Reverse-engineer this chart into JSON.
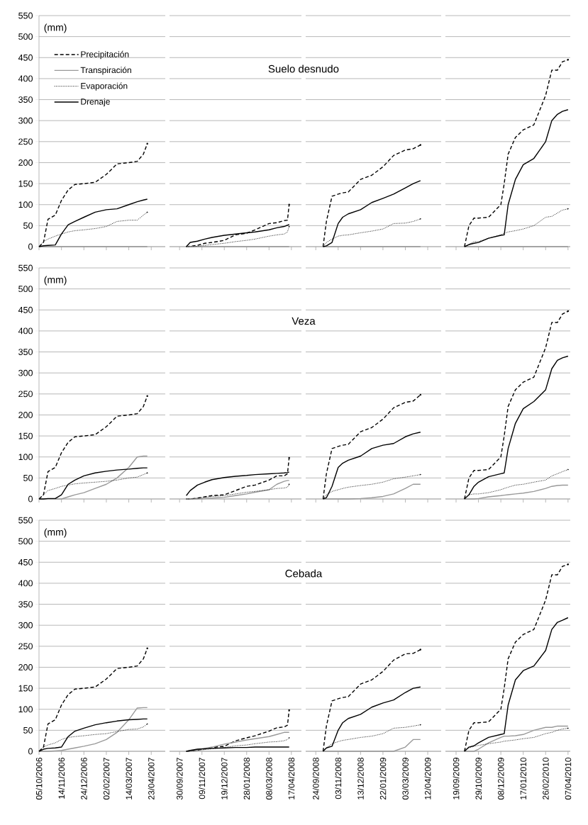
{
  "chart_data": [
    {
      "type": "line",
      "ylabel": "(mm)",
      "legend": "top left",
      "grid": "y",
      "tick_labels": "y",
      "xlim": [
        "2006-10-05",
        "2007-05-18"
      ],
      "ylim": [
        0,
        550
      ],
      "yticks": [
        0,
        50,
        100,
        150,
        200,
        250,
        300,
        350,
        400,
        450,
        500,
        550
      ],
      "xticks": [
        {
          "value": "2006-10-05",
          "label": null
        },
        {
          "value": "2006-11-14",
          "label": null
        },
        {
          "value": "2006-12-24",
          "label": null
        },
        {
          "value": "2007-02-02",
          "label": null
        },
        {
          "value": "2007-03-14",
          "label": null
        },
        {
          "value": "2007-04-23",
          "label": null
        }
      ],
      "x": [
        "2006-10-05",
        "2006-10-13",
        "2006-10-21",
        "2006-11-03",
        "2006-11-14",
        "2006-11-26",
        "2006-12-08",
        "2006-12-24",
        "2007-01-13",
        "2007-02-02",
        "2007-02-21",
        "2007-03-14",
        "2007-03-29",
        "2007-04-09",
        "2007-04-16"
      ],
      "series": [
        {
          "name": "Precipitación",
          "color": "#000000",
          "line_style": "dashed",
          "values": [
            0,
            10,
            65,
            75,
            110,
            135,
            148,
            150,
            153,
            172,
            197,
            200,
            203,
            220,
            245
          ]
        },
        {
          "name": "Transpiración",
          "color": "#999999",
          "line_style": "solid",
          "values": [
            0,
            0,
            0,
            0,
            0,
            0,
            0,
            0,
            0,
            0,
            0,
            0,
            0,
            0,
            0
          ]
        },
        {
          "name": "Evaporación",
          "color": "#000000",
          "line_style": "dotted",
          "values": [
            0,
            12,
            18,
            25,
            30,
            35,
            38,
            40,
            43,
            48,
            60,
            63,
            63,
            75,
            82
          ]
        },
        {
          "name": "Drenaje",
          "color": "#000000",
          "line_style": "solid",
          "values": [
            0,
            2,
            3,
            4,
            30,
            52,
            60,
            70,
            82,
            88,
            90,
            100,
            107,
            111,
            113
          ]
        }
      ]
    },
    {
      "type": "line",
      "title": "Suelo desnudo",
      "grid": "y",
      "tick_labels": false,
      "xlim": [
        "2007-09-12",
        "2008-05-05"
      ],
      "ylim": [
        0,
        550
      ],
      "yticks": [
        0,
        50,
        100,
        150,
        200,
        250,
        300,
        350,
        400,
        450,
        500,
        550
      ],
      "xticks": [
        {
          "value": "2007-09-30",
          "label": null
        },
        {
          "value": "2007-11-09",
          "label": null
        },
        {
          "value": "2007-12-19",
          "label": null
        },
        {
          "value": "2008-01-28",
          "label": null
        },
        {
          "value": "2008-03-08",
          "label": null
        },
        {
          "value": "2008-04-17",
          "label": null
        }
      ],
      "x": [
        "2007-10-12",
        "2007-10-19",
        "2007-11-01",
        "2007-11-14",
        "2007-11-27",
        "2007-12-19",
        "2008-01-08",
        "2008-01-28",
        "2008-02-12",
        "2008-03-08",
        "2008-03-22",
        "2008-04-04",
        "2008-04-10",
        "2008-04-13"
      ],
      "series": [
        {
          "color": "#000000",
          "line_style": "dashed",
          "values": [
            0,
            1,
            3,
            8,
            10,
            15,
            28,
            32,
            40,
            55,
            57,
            62,
            63,
            100
          ]
        },
        {
          "color": "#999999",
          "line_style": "solid",
          "values": [
            0,
            0,
            0,
            0,
            0,
            0,
            0,
            0,
            0,
            0,
            0,
            0,
            0,
            0
          ]
        },
        {
          "color": "#000000",
          "line_style": "dotted",
          "values": [
            0,
            0,
            1,
            3,
            5,
            8,
            12,
            15,
            18,
            25,
            28,
            30,
            35,
            48
          ]
        },
        {
          "color": "#000000",
          "line_style": "solid",
          "values": [
            0,
            10,
            13,
            18,
            22,
            27,
            30,
            33,
            35,
            40,
            45,
            48,
            51,
            53
          ]
        }
      ]
    },
    {
      "type": "line",
      "grid": "y",
      "tick_labels": false,
      "xlim": [
        "2008-09-06",
        "2009-05-06"
      ],
      "ylim": [
        0,
        550
      ],
      "yticks": [
        0,
        50,
        100,
        150,
        200,
        250,
        300,
        350,
        400,
        450,
        500,
        550
      ],
      "xticks": [
        {
          "value": "2008-09-24",
          "label": null
        },
        {
          "value": "2008-11-03",
          "label": null
        },
        {
          "value": "2008-12-13",
          "label": null
        },
        {
          "value": "2009-01-22",
          "label": null
        },
        {
          "value": "2009-03-03",
          "label": null
        },
        {
          "value": "2009-04-12",
          "label": null
        }
      ],
      "x": [
        "2008-10-07",
        "2008-10-13",
        "2008-10-23",
        "2008-11-03",
        "2008-11-11",
        "2008-11-21",
        "2008-12-13",
        "2009-01-02",
        "2009-01-22",
        "2009-02-10",
        "2009-03-03",
        "2009-03-17",
        "2009-03-30"
      ],
      "series": [
        {
          "color": "#000000",
          "line_style": "dashed",
          "values": [
            0,
            60,
            120,
            125,
            128,
            130,
            160,
            170,
            190,
            217,
            230,
            233,
            242
          ]
        },
        {
          "color": "#999999",
          "line_style": "solid",
          "values": [
            0,
            0,
            0,
            0,
            0,
            0,
            0,
            0,
            0,
            0,
            0,
            0,
            0
          ]
        },
        {
          "color": "#000000",
          "line_style": "dotted",
          "values": [
            0,
            10,
            18,
            25,
            27,
            28,
            33,
            37,
            42,
            55,
            56,
            60,
            66
          ]
        },
        {
          "color": "#000000",
          "line_style": "solid",
          "values": [
            0,
            2,
            10,
            55,
            70,
            78,
            88,
            105,
            115,
            125,
            140,
            150,
            157
          ]
        }
      ]
    },
    {
      "type": "line",
      "grid": "y",
      "tick_labels": false,
      "xlim": [
        "2009-08-31",
        "2010-04-11"
      ],
      "ylim": [
        0,
        550
      ],
      "yticks": [
        0,
        50,
        100,
        150,
        200,
        250,
        300,
        350,
        400,
        450,
        500,
        550
      ],
      "xticks": [
        {
          "value": "2009-09-19",
          "label": null
        },
        {
          "value": "2009-10-29",
          "label": null
        },
        {
          "value": "2009-12-08",
          "label": null
        },
        {
          "value": "2010-01-17",
          "label": null
        },
        {
          "value": "2010-02-26",
          "label": null
        },
        {
          "value": "2010-04-07",
          "label": null
        }
      ],
      "x": [
        "2009-10-04",
        "2009-10-12",
        "2009-10-21",
        "2009-10-29",
        "2009-11-16",
        "2009-12-08",
        "2009-12-14",
        "2009-12-21",
        "2010-01-03",
        "2010-01-17",
        "2010-02-05",
        "2010-02-26",
        "2010-03-09",
        "2010-03-19",
        "2010-03-28",
        "2010-04-07"
      ],
      "series": [
        {
          "color": "#000000",
          "line_style": "dashed",
          "values": [
            0,
            50,
            68,
            68,
            70,
            100,
            150,
            220,
            260,
            278,
            290,
            360,
            420,
            420,
            440,
            445
          ]
        },
        {
          "color": "#999999",
          "line_style": "solid",
          "values": [
            0,
            0,
            0,
            0,
            0,
            0,
            0,
            0,
            0,
            0,
            0,
            0,
            0,
            0,
            0,
            0
          ]
        },
        {
          "color": "#000000",
          "line_style": "dotted",
          "values": [
            0,
            5,
            12,
            12,
            20,
            28,
            32,
            35,
            38,
            42,
            50,
            70,
            72,
            80,
            87,
            90
          ]
        },
        {
          "color": "#000000",
          "line_style": "solid",
          "values": [
            0,
            5,
            8,
            10,
            20,
            27,
            28,
            100,
            160,
            195,
            210,
            250,
            300,
            315,
            322,
            326
          ]
        }
      ]
    },
    {
      "type": "line",
      "ylabel": "(mm)",
      "grid": "y",
      "tick_labels": "y",
      "xlim": [
        "2006-10-05",
        "2007-05-18"
      ],
      "ylim": [
        0,
        550
      ],
      "yticks": [
        0,
        50,
        100,
        150,
        200,
        250,
        300,
        350,
        400,
        450,
        500,
        550
      ],
      "xticks": [
        {
          "value": "2006-10-05",
          "label": null
        },
        {
          "value": "2006-11-14",
          "label": null
        },
        {
          "value": "2006-12-24",
          "label": null
        },
        {
          "value": "2007-02-02",
          "label": null
        },
        {
          "value": "2007-03-14",
          "label": null
        },
        {
          "value": "2007-04-23",
          "label": null
        }
      ],
      "x": [
        "2006-10-05",
        "2006-10-13",
        "2006-10-21",
        "2006-11-03",
        "2006-11-14",
        "2006-11-26",
        "2006-12-08",
        "2006-12-24",
        "2007-01-13",
        "2007-02-02",
        "2007-02-21",
        "2007-03-14",
        "2007-03-29",
        "2007-04-09",
        "2007-04-16"
      ],
      "series": [
        {
          "color": "#000000",
          "line_style": "dashed",
          "values": [
            0,
            10,
            65,
            75,
            110,
            135,
            148,
            150,
            153,
            172,
            197,
            200,
            203,
            220,
            245
          ]
        },
        {
          "color": "#999999",
          "line_style": "solid",
          "values": [
            0,
            0,
            0,
            0,
            0,
            5,
            10,
            15,
            25,
            35,
            50,
            75,
            100,
            102,
            102
          ]
        },
        {
          "color": "#000000",
          "line_style": "dotted",
          "values": [
            0,
            10,
            20,
            25,
            30,
            33,
            36,
            38,
            40,
            42,
            45,
            50,
            52,
            58,
            62
          ]
        },
        {
          "color": "#000000",
          "line_style": "solid",
          "values": [
            0,
            0,
            1,
            1,
            10,
            35,
            45,
            55,
            62,
            66,
            69,
            71,
            73,
            74,
            74
          ]
        }
      ]
    },
    {
      "type": "line",
      "title": "Veza",
      "grid": "y",
      "tick_labels": false,
      "xlim": [
        "2007-09-12",
        "2008-05-05"
      ],
      "ylim": [
        0,
        550
      ],
      "yticks": [
        0,
        50,
        100,
        150,
        200,
        250,
        300,
        350,
        400,
        450,
        500,
        550
      ],
      "xticks": [
        {
          "value": "2007-09-30",
          "label": null
        },
        {
          "value": "2007-11-09",
          "label": null
        },
        {
          "value": "2007-12-19",
          "label": null
        },
        {
          "value": "2008-01-28",
          "label": null
        },
        {
          "value": "2008-03-08",
          "label": null
        },
        {
          "value": "2008-04-17",
          "label": null
        }
      ],
      "x": [
        "2007-10-12",
        "2007-10-19",
        "2007-11-01",
        "2007-11-14",
        "2007-11-27",
        "2007-12-19",
        "2008-01-08",
        "2008-01-28",
        "2008-02-12",
        "2008-03-08",
        "2008-03-22",
        "2008-04-04",
        "2008-04-10",
        "2008-04-13"
      ],
      "series": [
        {
          "color": "#000000",
          "line_style": "dashed",
          "values": [
            0,
            0,
            2,
            5,
            8,
            10,
            20,
            30,
            33,
            45,
            55,
            55,
            60,
            98
          ]
        },
        {
          "color": "#999999",
          "line_style": "solid",
          "values": [
            0,
            0,
            0,
            1,
            2,
            4,
            8,
            12,
            16,
            22,
            35,
            42,
            44,
            44
          ]
        },
        {
          "color": "#000000",
          "line_style": "dotted",
          "values": [
            0,
            0,
            2,
            4,
            6,
            8,
            12,
            16,
            18,
            22,
            25,
            26,
            28,
            35
          ]
        },
        {
          "color": "#000000",
          "line_style": "solid",
          "values": [
            8,
            20,
            33,
            40,
            46,
            51,
            54,
            56,
            58,
            60,
            61,
            62,
            63,
            64
          ]
        }
      ]
    },
    {
      "type": "line",
      "grid": "y",
      "tick_labels": false,
      "xlim": [
        "2008-09-06",
        "2009-05-06"
      ],
      "ylim": [
        0,
        550
      ],
      "yticks": [
        0,
        50,
        100,
        150,
        200,
        250,
        300,
        350,
        400,
        450,
        500,
        550
      ],
      "xticks": [
        {
          "value": "2008-09-24",
          "label": null
        },
        {
          "value": "2008-11-03",
          "label": null
        },
        {
          "value": "2008-12-13",
          "label": null
        },
        {
          "value": "2009-01-22",
          "label": null
        },
        {
          "value": "2009-03-03",
          "label": null
        },
        {
          "value": "2009-04-12",
          "label": null
        }
      ],
      "x": [
        "2008-10-07",
        "2008-10-13",
        "2008-10-23",
        "2008-11-03",
        "2008-11-11",
        "2008-11-21",
        "2008-12-13",
        "2009-01-02",
        "2009-01-22",
        "2009-02-10",
        "2009-03-03",
        "2009-03-17",
        "2009-03-30"
      ],
      "series": [
        {
          "color": "#000000",
          "line_style": "dashed",
          "values": [
            0,
            60,
            120,
            125,
            128,
            130,
            160,
            170,
            190,
            217,
            230,
            233,
            248
          ]
        },
        {
          "color": "#999999",
          "line_style": "solid",
          "values": [
            0,
            0,
            0,
            0,
            0,
            0,
            1,
            3,
            6,
            12,
            25,
            35,
            35
          ]
        },
        {
          "color": "#000000",
          "line_style": "dotted",
          "values": [
            0,
            10,
            18,
            22,
            25,
            28,
            32,
            35,
            40,
            48,
            52,
            55,
            58
          ]
        },
        {
          "color": "#000000",
          "line_style": "solid",
          "values": [
            0,
            3,
            30,
            75,
            85,
            92,
            102,
            120,
            128,
            132,
            148,
            155,
            159
          ]
        }
      ]
    },
    {
      "type": "line",
      "grid": "y",
      "tick_labels": false,
      "xlim": [
        "2009-08-31",
        "2010-04-11"
      ],
      "ylim": [
        0,
        550
      ],
      "yticks": [
        0,
        50,
        100,
        150,
        200,
        250,
        300,
        350,
        400,
        450,
        500,
        550
      ],
      "xticks": [
        {
          "value": "2009-09-19",
          "label": null
        },
        {
          "value": "2009-10-29",
          "label": null
        },
        {
          "value": "2009-12-08",
          "label": null
        },
        {
          "value": "2010-01-17",
          "label": null
        },
        {
          "value": "2010-02-26",
          "label": null
        },
        {
          "value": "2010-04-07",
          "label": null
        }
      ],
      "x": [
        "2009-10-04",
        "2009-10-12",
        "2009-10-21",
        "2009-10-29",
        "2009-11-16",
        "2009-12-08",
        "2009-12-14",
        "2009-12-21",
        "2010-01-03",
        "2010-01-17",
        "2010-02-05",
        "2010-02-26",
        "2010-03-09",
        "2010-03-19",
        "2010-03-28",
        "2010-04-07"
      ],
      "series": [
        {
          "color": "#000000",
          "line_style": "dashed",
          "values": [
            0,
            50,
            68,
            68,
            70,
            100,
            150,
            220,
            260,
            278,
            290,
            360,
            420,
            420,
            440,
            447
          ]
        },
        {
          "color": "#999999",
          "line_style": "solid",
          "values": [
            0,
            0,
            0,
            1,
            5,
            8,
            9,
            10,
            12,
            14,
            18,
            25,
            30,
            32,
            33,
            33
          ]
        },
        {
          "color": "#000000",
          "line_style": "dotted",
          "values": [
            0,
            10,
            12,
            12,
            15,
            22,
            25,
            28,
            33,
            35,
            40,
            45,
            55,
            60,
            65,
            70
          ]
        },
        {
          "color": "#000000",
          "line_style": "solid",
          "values": [
            0,
            10,
            30,
            40,
            53,
            60,
            62,
            120,
            180,
            215,
            232,
            260,
            310,
            330,
            336,
            340
          ]
        }
      ]
    },
    {
      "type": "line",
      "ylabel": "(mm)",
      "grid": "y",
      "xlim": [
        "2006-10-05",
        "2007-05-18"
      ],
      "ylim": [
        0,
        550
      ],
      "yticks": [
        0,
        50,
        100,
        150,
        200,
        250,
        300,
        350,
        400,
        450,
        500,
        550
      ],
      "xticks": [
        {
          "value": "2006-10-05",
          "label": "05/10/2006"
        },
        {
          "value": "2006-11-14",
          "label": "14/11/2006"
        },
        {
          "value": "2006-12-24",
          "label": "24/12/2006"
        },
        {
          "value": "2007-02-02",
          "label": "02/02/2007"
        },
        {
          "value": "2007-03-14",
          "label": "14/03/2007"
        },
        {
          "value": "2007-04-23",
          "label": "23/04/2007"
        }
      ],
      "x": [
        "2006-10-05",
        "2006-10-13",
        "2006-10-21",
        "2006-11-03",
        "2006-11-14",
        "2006-11-26",
        "2006-12-08",
        "2006-12-24",
        "2007-01-13",
        "2007-02-02",
        "2007-02-21",
        "2007-03-14",
        "2007-03-29",
        "2007-04-09",
        "2007-04-16"
      ],
      "series": [
        {
          "color": "#000000",
          "line_style": "dashed",
          "values": [
            0,
            10,
            65,
            75,
            110,
            135,
            148,
            150,
            153,
            172,
            197,
            200,
            203,
            220,
            245
          ]
        },
        {
          "color": "#999999",
          "line_style": "solid",
          "values": [
            0,
            0,
            0,
            1,
            2,
            5,
            8,
            12,
            18,
            28,
            45,
            75,
            103,
            104,
            104
          ]
        },
        {
          "color": "#000000",
          "line_style": "dotted",
          "values": [
            0,
            10,
            15,
            20,
            28,
            33,
            35,
            37,
            40,
            42,
            47,
            52,
            53,
            58,
            65
          ]
        },
        {
          "color": "#000000",
          "line_style": "solid",
          "values": [
            0,
            5,
            7,
            8,
            10,
            35,
            48,
            55,
            63,
            68,
            72,
            75,
            76,
            77,
            77
          ]
        }
      ]
    },
    {
      "type": "line",
      "title": "Cebada",
      "grid": "y",
      "tick_labels": "x",
      "xlim": [
        "2007-09-12",
        "2008-05-05"
      ],
      "ylim": [
        0,
        550
      ],
      "yticks": [
        0,
        50,
        100,
        150,
        200,
        250,
        300,
        350,
        400,
        450,
        500,
        550
      ],
      "xticks": [
        {
          "value": "2007-09-30",
          "label": "30/09/2007"
        },
        {
          "value": "2007-11-09",
          "label": "09/11/2007"
        },
        {
          "value": "2007-12-19",
          "label": "19/12/2007"
        },
        {
          "value": "2008-01-28",
          "label": "28/01/2008"
        },
        {
          "value": "2008-03-08",
          "label": "08/03/2008"
        },
        {
          "value": "2008-04-17",
          "label": "17/04/2008"
        }
      ],
      "x": [
        "2007-10-12",
        "2007-10-19",
        "2007-11-01",
        "2007-11-14",
        "2007-11-27",
        "2007-12-19",
        "2008-01-08",
        "2008-01-28",
        "2008-02-12",
        "2008-03-08",
        "2008-03-22",
        "2008-04-04",
        "2008-04-10",
        "2008-04-13"
      ],
      "series": [
        {
          "color": "#000000",
          "line_style": "dashed",
          "values": [
            0,
            1,
            3,
            6,
            9,
            12,
            25,
            32,
            37,
            48,
            56,
            58,
            62,
            98
          ]
        },
        {
          "color": "#999999",
          "line_style": "solid",
          "values": [
            0,
            1,
            4,
            7,
            10,
            17,
            22,
            27,
            30,
            35,
            40,
            45,
            45,
            45
          ]
        },
        {
          "color": "#000000",
          "line_style": "dotted",
          "values": [
            0,
            0,
            2,
            4,
            6,
            9,
            13,
            15,
            18,
            22,
            23,
            25,
            28,
            32
          ]
        },
        {
          "color": "#000000",
          "line_style": "solid",
          "values": [
            0,
            2,
            5,
            6,
            7,
            8,
            9,
            9,
            10,
            10,
            10,
            10,
            10,
            10
          ]
        }
      ]
    },
    {
      "type": "line",
      "grid": "y",
      "tick_labels": "x",
      "xlim": [
        "2008-09-06",
        "2009-05-06"
      ],
      "ylim": [
        0,
        550
      ],
      "yticks": [
        0,
        50,
        100,
        150,
        200,
        250,
        300,
        350,
        400,
        450,
        500,
        550
      ],
      "xticks": [
        {
          "value": "2008-09-24",
          "label": "24/09/2008"
        },
        {
          "value": "2008-11-03",
          "label": "03/11/2008"
        },
        {
          "value": "2008-12-13",
          "label": "13/12/2008"
        },
        {
          "value": "2009-01-22",
          "label": "22/01/2009"
        },
        {
          "value": "2009-03-03",
          "label": "03/03/2009"
        },
        {
          "value": "2009-04-12",
          "label": "12/04/2009"
        }
      ],
      "x": [
        "2008-10-07",
        "2008-10-13",
        "2008-10-23",
        "2008-11-03",
        "2008-11-11",
        "2008-11-21",
        "2008-12-13",
        "2009-01-02",
        "2009-01-22",
        "2009-02-10",
        "2009-03-03",
        "2009-03-17",
        "2009-03-30"
      ],
      "series": [
        {
          "color": "#000000",
          "line_style": "dashed",
          "values": [
            0,
            60,
            120,
            125,
            128,
            130,
            160,
            170,
            190,
            217,
            232,
            233,
            242
          ]
        },
        {
          "color": "#999999",
          "line_style": "solid",
          "values": [
            0,
            0,
            0,
            0,
            0,
            0,
            0,
            0,
            0,
            0,
            10,
            28,
            28
          ]
        },
        {
          "color": "#000000",
          "line_style": "dotted",
          "values": [
            0,
            8,
            18,
            23,
            26,
            28,
            33,
            36,
            42,
            55,
            57,
            60,
            63
          ]
        },
        {
          "color": "#000000",
          "line_style": "solid",
          "values": [
            0,
            8,
            12,
            50,
            68,
            78,
            88,
            105,
            115,
            122,
            140,
            150,
            153
          ]
        }
      ]
    },
    {
      "type": "line",
      "grid": "y",
      "tick_labels": "x",
      "xlim": [
        "2009-08-31",
        "2010-04-11"
      ],
      "ylim": [
        0,
        550
      ],
      "yticks": [
        0,
        50,
        100,
        150,
        200,
        250,
        300,
        350,
        400,
        450,
        500,
        550
      ],
      "xticks": [
        {
          "value": "2009-09-19",
          "label": "19/09/2009"
        },
        {
          "value": "2009-10-29",
          "label": "29/10/2009"
        },
        {
          "value": "2009-12-08",
          "label": "08/12/2009"
        },
        {
          "value": "2010-01-17",
          "label": "17/01/2010"
        },
        {
          "value": "2010-02-26",
          "label": "26/02/2010"
        },
        {
          "value": "2010-04-07",
          "label": "07/04/2010"
        }
      ],
      "x": [
        "2009-10-04",
        "2009-10-12",
        "2009-10-21",
        "2009-10-29",
        "2009-11-16",
        "2009-12-08",
        "2009-12-14",
        "2009-12-21",
        "2010-01-03",
        "2010-01-17",
        "2010-02-05",
        "2010-02-26",
        "2010-03-09",
        "2010-03-19",
        "2010-03-28",
        "2010-04-07"
      ],
      "series": [
        {
          "color": "#000000",
          "line_style": "dashed",
          "values": [
            0,
            50,
            68,
            68,
            70,
            100,
            150,
            220,
            260,
            278,
            290,
            360,
            420,
            420,
            440,
            445
          ]
        },
        {
          "color": "#999999",
          "line_style": "solid",
          "values": [
            0,
            0,
            0,
            5,
            20,
            33,
            36,
            36,
            37,
            40,
            50,
            57,
            57,
            60,
            60,
            60
          ]
        },
        {
          "color": "#000000",
          "line_style": "dotted",
          "values": [
            0,
            8,
            12,
            14,
            18,
            22,
            24,
            25,
            27,
            30,
            33,
            42,
            45,
            50,
            53,
            55
          ]
        },
        {
          "color": "#000000",
          "line_style": "solid",
          "values": [
            0,
            10,
            13,
            20,
            33,
            40,
            42,
            110,
            170,
            192,
            203,
            240,
            290,
            307,
            312,
            318
          ]
        }
      ]
    }
  ]
}
